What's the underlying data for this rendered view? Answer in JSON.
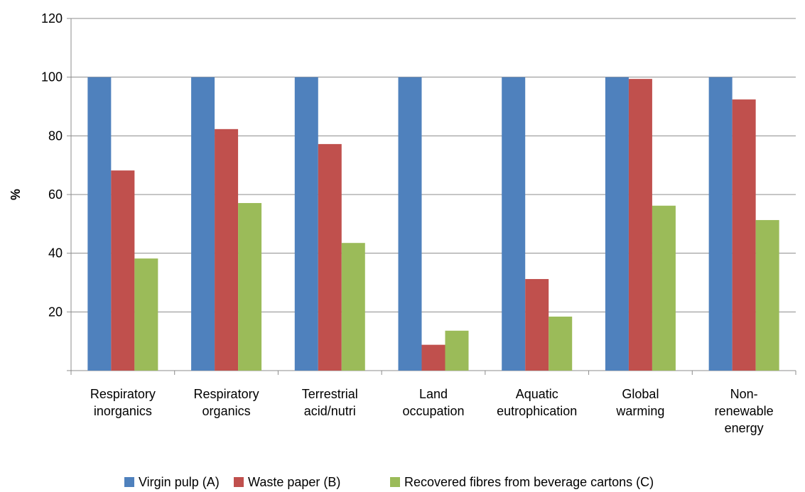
{
  "chart_data": {
    "type": "bar",
    "categories": [
      [
        "Respiratory",
        "inorganics"
      ],
      [
        "Respiratory",
        "organics"
      ],
      [
        "Terrestrial",
        "acid/nutri"
      ],
      [
        "Land",
        "occupation"
      ],
      [
        "Aquatic",
        "eutrophication"
      ],
      [
        "Global",
        "warming"
      ],
      [
        "Non-",
        "renewable",
        "energy"
      ]
    ],
    "series": [
      {
        "name": "Virgin pulp (A)",
        "color": "#4f81bd",
        "values": [
          100,
          100,
          100,
          100,
          100,
          100,
          100
        ]
      },
      {
        "name": "Waste paper (B)",
        "color": "#c0504d",
        "values": [
          68.2,
          82.3,
          77.2,
          8.8,
          31.2,
          99.4,
          92.4
        ]
      },
      {
        "name": "Recovered fibres from beverage cartons (C)",
        "color": "#9bbb59",
        "values": [
          38.2,
          57.1,
          43.5,
          13.6,
          18.4,
          56.2,
          51.3
        ]
      }
    ],
    "ylabel": "%",
    "xlabel": "",
    "ylim": [
      0,
      120
    ],
    "yticks": [
      20,
      40,
      60,
      80,
      100,
      120
    ],
    "grid": true,
    "legend_position": "bottom"
  }
}
